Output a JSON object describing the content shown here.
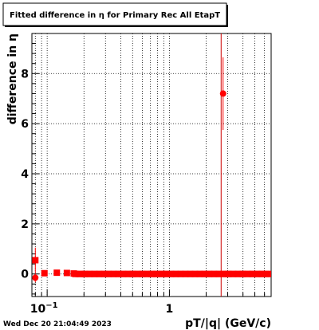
{
  "chart_data": {
    "type": "scatter",
    "title": "Fitted difference in η for Primary Rec All EtapT",
    "ylabel": "difference in  η",
    "xlabel": "pT/|q| (GeV/c)",
    "x_scale": "log",
    "xlim": [
      0.075,
      6.8
    ],
    "ylim": [
      -0.9,
      9.6
    ],
    "grid": true,
    "legend": "none",
    "x_ticks": [
      {
        "value": 0.1,
        "base": "10",
        "exp": "−1"
      },
      {
        "value": 1,
        "base": "1",
        "exp": ""
      }
    ],
    "y_ticks": [
      0,
      2,
      4,
      6,
      8
    ],
    "vertical_line": {
      "x": 2.65,
      "color": "#cc0000"
    },
    "marker_color": "#ff0000",
    "points": [
      {
        "x": 0.08,
        "y": 0.55,
        "err": 0.5,
        "marker": "square"
      },
      {
        "x": 0.08,
        "y": -0.15,
        "err": 0.18,
        "marker": "circle"
      },
      {
        "x": 0.095,
        "y": 0.03,
        "err": 0.05,
        "marker": "square"
      },
      {
        "x": 0.12,
        "y": 0.05,
        "err": 0.05,
        "marker": "square"
      },
      {
        "x": 0.145,
        "y": 0.04,
        "err": 0.05,
        "marker": "square"
      },
      {
        "x": 0.165,
        "y": 0.02,
        "err": 0.04,
        "marker": "square"
      },
      {
        "x": 2.75,
        "y": 7.2,
        "err": 1.45,
        "marker": "circle"
      }
    ],
    "band": {
      "from": 0.17,
      "to": 6.8,
      "y": 0.0,
      "marker": "square"
    }
  },
  "footer": {
    "timestamp": "Wed Dec 20 21:04:49 2023"
  }
}
